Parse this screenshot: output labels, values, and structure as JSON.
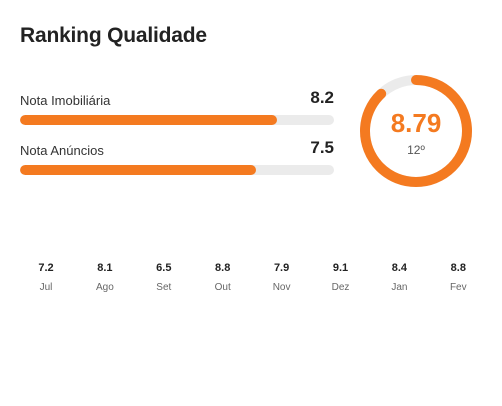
{
  "title": "Ranking Qualidade",
  "metrics": [
    {
      "label": "Nota Imobiliária",
      "value": "8.2",
      "progress": 0.82
    },
    {
      "label": "Nota Anúncios",
      "value": "7.5",
      "progress": 0.75
    }
  ],
  "score": {
    "value": "8.79",
    "rank": "12º",
    "progress": 0.879
  },
  "history": [
    {
      "value": "7.2",
      "month": "Jul"
    },
    {
      "value": "8.1",
      "month": "Ago"
    },
    {
      "value": "6.5",
      "month": "Set"
    },
    {
      "value": "8.8",
      "month": "Out"
    },
    {
      "value": "7.9",
      "month": "Nov"
    },
    {
      "value": "9.1",
      "month": "Dez"
    },
    {
      "value": "8.4",
      "month": "Jan"
    },
    {
      "value": "8.8",
      "month": "Fev"
    }
  ],
  "colors": {
    "accent": "#f47a20",
    "track": "#ebebeb"
  }
}
